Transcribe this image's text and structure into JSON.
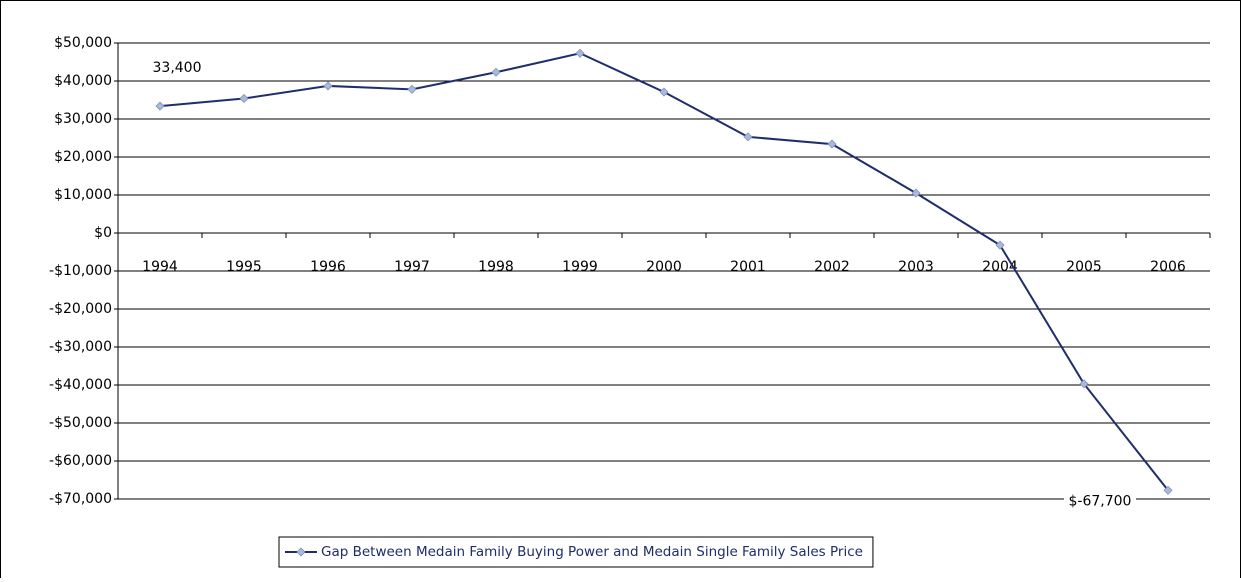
{
  "chart_data": {
    "type": "line",
    "categories": [
      "1994",
      "1995",
      "1996",
      "1997",
      "1998",
      "1999",
      "2000",
      "2001",
      "2002",
      "2003",
      "2004",
      "2005",
      "2006"
    ],
    "series": [
      {
        "name": "Gap Between Medain Family Buying Power and Medain Single Family  Sales Price",
        "color": "#1f2d6b",
        "marker_color": "#a9b9d9",
        "values": [
          33400,
          35400,
          38700,
          37800,
          42300,
          47300,
          37100,
          25300,
          23400,
          10500,
          -3200,
          -39700,
          -67700
        ],
        "value_labels": [
          "33,400",
          null,
          null,
          null,
          null,
          null,
          null,
          null,
          null,
          null,
          null,
          null,
          "$-67,700"
        ]
      }
    ],
    "ylim": [
      -70000,
      50000
    ],
    "yticks": [
      {
        "value": -70000,
        "label": "-$70,000"
      },
      {
        "value": -60000,
        "label": "-$60,000"
      },
      {
        "value": -50000,
        "label": "-$50,000"
      },
      {
        "value": -40000,
        "label": "-$40,000"
      },
      {
        "value": -30000,
        "label": "-$30,000"
      },
      {
        "value": -20000,
        "label": "-$20,000"
      },
      {
        "value": -10000,
        "label": "-$10,000"
      },
      {
        "value": 0,
        "label": "$0"
      },
      {
        "value": 10000,
        "label": "$10,000"
      },
      {
        "value": 20000,
        "label": "$20,000"
      },
      {
        "value": 30000,
        "label": "$30,000"
      },
      {
        "value": 40000,
        "label": "$40,000"
      },
      {
        "value": 50000,
        "label": "$50,000"
      }
    ],
    "grid": true,
    "legend": "bottom"
  }
}
